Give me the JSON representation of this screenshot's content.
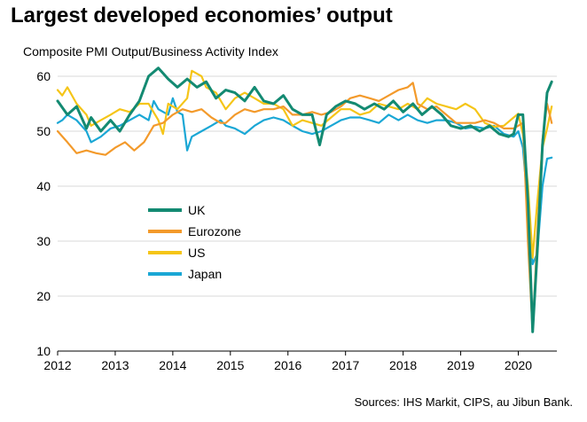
{
  "header": {
    "title": "Largest developed economies’ output",
    "subtitle": "Composite PMI Output/Business  Activity Index"
  },
  "footer": {
    "source": "Sources: IHS Markit, CIPS, au Jibun Bank."
  },
  "chart_data": {
    "type": "line",
    "title": "Largest developed economies’ output",
    "ylabel": "Composite PMI Output/Business  Activity Index",
    "xlabel": "",
    "xlim": [
      2012.0,
      2020.67
    ],
    "ylim": [
      10,
      60
    ],
    "y_ticks": [
      10,
      20,
      30,
      40,
      50,
      60
    ],
    "x_ticks": [
      "2012",
      "2013",
      "2014",
      "2015",
      "2016",
      "2017",
      "2018",
      "2019",
      "2020"
    ],
    "grid": "horizontal",
    "legend_position": "center-left",
    "series": [
      {
        "name": "UK",
        "color": "#138a72",
        "points": [
          [
            2012.0,
            55.5
          ],
          [
            2012.17,
            53
          ],
          [
            2012.33,
            54.5
          ],
          [
            2012.5,
            50.5
          ],
          [
            2012.58,
            52.5
          ],
          [
            2012.75,
            50
          ],
          [
            2012.92,
            52
          ],
          [
            2013.08,
            50
          ],
          [
            2013.25,
            53
          ],
          [
            2013.42,
            55.5
          ],
          [
            2013.58,
            60
          ],
          [
            2013.75,
            61.5
          ],
          [
            2013.92,
            59.5
          ],
          [
            2014.08,
            58
          ],
          [
            2014.25,
            59.5
          ],
          [
            2014.42,
            58
          ],
          [
            2014.58,
            59
          ],
          [
            2014.75,
            56
          ],
          [
            2014.92,
            57.5
          ],
          [
            2015.08,
            57
          ],
          [
            2015.25,
            55.5
          ],
          [
            2015.42,
            58
          ],
          [
            2015.58,
            55.5
          ],
          [
            2015.75,
            55
          ],
          [
            2015.92,
            56.5
          ],
          [
            2016.08,
            54
          ],
          [
            2016.25,
            53
          ],
          [
            2016.42,
            53
          ],
          [
            2016.55,
            47.5
          ],
          [
            2016.67,
            53
          ],
          [
            2016.83,
            54.5
          ],
          [
            2017.0,
            55.5
          ],
          [
            2017.17,
            55
          ],
          [
            2017.33,
            54
          ],
          [
            2017.5,
            55
          ],
          [
            2017.67,
            54
          ],
          [
            2017.83,
            55.5
          ],
          [
            2018.0,
            53.5
          ],
          [
            2018.17,
            55
          ],
          [
            2018.33,
            53
          ],
          [
            2018.5,
            54.5
          ],
          [
            2018.67,
            53
          ],
          [
            2018.83,
            51
          ],
          [
            2019.0,
            50.5
          ],
          [
            2019.17,
            51
          ],
          [
            2019.33,
            50
          ],
          [
            2019.5,
            51
          ],
          [
            2019.67,
            49.5
          ],
          [
            2019.83,
            49
          ],
          [
            2019.92,
            49.5
          ],
          [
            2020.0,
            53
          ],
          [
            2020.08,
            53
          ],
          [
            2020.17,
            37
          ],
          [
            2020.25,
            13.5
          ],
          [
            2020.33,
            28
          ],
          [
            2020.42,
            47.5
          ],
          [
            2020.5,
            57
          ],
          [
            2020.58,
            59
          ]
        ]
      },
      {
        "name": "Eurozone",
        "color": "#f39a2b",
        "points": [
          [
            2012.0,
            50
          ],
          [
            2012.17,
            48
          ],
          [
            2012.33,
            46
          ],
          [
            2012.5,
            46.5
          ],
          [
            2012.67,
            46
          ],
          [
            2012.83,
            45.7
          ],
          [
            2013.0,
            47
          ],
          [
            2013.17,
            48
          ],
          [
            2013.33,
            46.5
          ],
          [
            2013.5,
            48
          ],
          [
            2013.67,
            51
          ],
          [
            2013.83,
            51.5
          ],
          [
            2014.0,
            53
          ],
          [
            2014.17,
            54
          ],
          [
            2014.33,
            53.5
          ],
          [
            2014.5,
            54
          ],
          [
            2014.67,
            52.5
          ],
          [
            2014.83,
            51.5
          ],
          [
            2014.92,
            51.5
          ],
          [
            2015.08,
            53
          ],
          [
            2015.25,
            54
          ],
          [
            2015.42,
            53.5
          ],
          [
            2015.58,
            54
          ],
          [
            2015.75,
            54
          ],
          [
            2015.92,
            54.5
          ],
          [
            2016.08,
            53
          ],
          [
            2016.25,
            53
          ],
          [
            2016.42,
            53.5
          ],
          [
            2016.58,
            53
          ],
          [
            2016.75,
            53.5
          ],
          [
            2016.92,
            54.5
          ],
          [
            2017.08,
            56
          ],
          [
            2017.25,
            56.5
          ],
          [
            2017.42,
            56
          ],
          [
            2017.58,
            55.5
          ],
          [
            2017.75,
            56.5
          ],
          [
            2017.92,
            57.5
          ],
          [
            2018.08,
            58
          ],
          [
            2018.17,
            58.8
          ],
          [
            2018.25,
            55
          ],
          [
            2018.42,
            54
          ],
          [
            2018.58,
            54.5
          ],
          [
            2018.75,
            53
          ],
          [
            2018.92,
            51.5
          ],
          [
            2019.08,
            51.5
          ],
          [
            2019.25,
            51.5
          ],
          [
            2019.42,
            52
          ],
          [
            2019.58,
            51.5
          ],
          [
            2019.75,
            50.5
          ],
          [
            2019.92,
            50.5
          ],
          [
            2020.0,
            51
          ],
          [
            2020.08,
            51.5
          ],
          [
            2020.17,
            29.5
          ],
          [
            2020.25,
            13.6
          ],
          [
            2020.33,
            31
          ],
          [
            2020.42,
            48.5
          ],
          [
            2020.5,
            55
          ],
          [
            2020.58,
            51.5
          ]
        ]
      },
      {
        "name": "US",
        "color": "#f5c518",
        "points": [
          [
            2012.0,
            57.5
          ],
          [
            2012.08,
            56.5
          ],
          [
            2012.17,
            58
          ],
          [
            2012.33,
            55
          ],
          [
            2012.5,
            53
          ],
          [
            2012.58,
            51
          ],
          [
            2012.75,
            52
          ],
          [
            2012.92,
            53
          ],
          [
            2013.08,
            54
          ],
          [
            2013.25,
            53.5
          ],
          [
            2013.42,
            55
          ],
          [
            2013.58,
            55
          ],
          [
            2013.75,
            52
          ],
          [
            2013.83,
            49.5
          ],
          [
            2013.92,
            55
          ],
          [
            2014.08,
            54
          ],
          [
            2014.25,
            56
          ],
          [
            2014.33,
            61
          ],
          [
            2014.5,
            60
          ],
          [
            2014.58,
            58
          ],
          [
            2014.75,
            57
          ],
          [
            2014.92,
            54
          ],
          [
            2015.08,
            56
          ],
          [
            2015.25,
            57
          ],
          [
            2015.42,
            56
          ],
          [
            2015.58,
            55
          ],
          [
            2015.75,
            55
          ],
          [
            2015.92,
            54
          ],
          [
            2016.08,
            51
          ],
          [
            2016.25,
            52
          ],
          [
            2016.42,
            51.5
          ],
          [
            2016.58,
            51
          ],
          [
            2016.75,
            52.5
          ],
          [
            2016.92,
            54
          ],
          [
            2017.08,
            54
          ],
          [
            2017.25,
            53
          ],
          [
            2017.42,
            53.5
          ],
          [
            2017.58,
            55
          ],
          [
            2017.75,
            54.5
          ],
          [
            2017.92,
            54
          ],
          [
            2018.08,
            55
          ],
          [
            2018.25,
            54
          ],
          [
            2018.42,
            56
          ],
          [
            2018.58,
            55
          ],
          [
            2018.75,
            54.5
          ],
          [
            2018.92,
            54
          ],
          [
            2019.08,
            55
          ],
          [
            2019.25,
            54
          ],
          [
            2019.42,
            51.5
          ],
          [
            2019.58,
            50.8
          ],
          [
            2019.75,
            51
          ],
          [
            2019.92,
            52.5
          ],
          [
            2020.0,
            53.2
          ],
          [
            2020.08,
            49.5
          ],
          [
            2020.17,
            40
          ],
          [
            2020.25,
            27
          ],
          [
            2020.33,
            37
          ],
          [
            2020.42,
            47
          ],
          [
            2020.5,
            50.5
          ],
          [
            2020.58,
            54.5
          ]
        ]
      },
      {
        "name": "Japan",
        "color": "#1aa7d5",
        "points": [
          [
            2012.0,
            51.5
          ],
          [
            2012.08,
            52
          ],
          [
            2012.17,
            53
          ],
          [
            2012.33,
            52
          ],
          [
            2012.5,
            50
          ],
          [
            2012.58,
            48
          ],
          [
            2012.75,
            49
          ],
          [
            2012.92,
            50.5
          ],
          [
            2013.08,
            51
          ],
          [
            2013.25,
            52
          ],
          [
            2013.42,
            53
          ],
          [
            2013.58,
            52
          ],
          [
            2013.67,
            55.5
          ],
          [
            2013.75,
            54
          ],
          [
            2013.92,
            53
          ],
          [
            2014.0,
            56
          ],
          [
            2014.08,
            53.5
          ],
          [
            2014.17,
            53
          ],
          [
            2014.25,
            46.5
          ],
          [
            2014.33,
            49
          ],
          [
            2014.5,
            50
          ],
          [
            2014.67,
            51
          ],
          [
            2014.83,
            52
          ],
          [
            2014.92,
            51
          ],
          [
            2015.08,
            50.5
          ],
          [
            2015.25,
            49.5
          ],
          [
            2015.42,
            51
          ],
          [
            2015.58,
            52
          ],
          [
            2015.75,
            52.5
          ],
          [
            2015.92,
            52
          ],
          [
            2016.08,
            51
          ],
          [
            2016.25,
            50
          ],
          [
            2016.42,
            49.5
          ],
          [
            2016.58,
            50
          ],
          [
            2016.75,
            51
          ],
          [
            2016.92,
            52
          ],
          [
            2017.08,
            52.5
          ],
          [
            2017.25,
            52.5
          ],
          [
            2017.42,
            52
          ],
          [
            2017.58,
            51.5
          ],
          [
            2017.75,
            53
          ],
          [
            2017.92,
            52
          ],
          [
            2018.08,
            53
          ],
          [
            2018.25,
            52
          ],
          [
            2018.42,
            51.5
          ],
          [
            2018.58,
            52
          ],
          [
            2018.75,
            52
          ],
          [
            2018.92,
            51.5
          ],
          [
            2019.08,
            50.5
          ],
          [
            2019.25,
            50.8
          ],
          [
            2019.42,
            50.5
          ],
          [
            2019.58,
            51
          ],
          [
            2019.75,
            49.5
          ],
          [
            2019.92,
            49
          ],
          [
            2020.0,
            50
          ],
          [
            2020.08,
            47
          ],
          [
            2020.17,
            36
          ],
          [
            2020.25,
            25.8
          ],
          [
            2020.33,
            27.8
          ],
          [
            2020.42,
            40
          ],
          [
            2020.5,
            45
          ],
          [
            2020.58,
            45.2
          ]
        ]
      }
    ]
  }
}
